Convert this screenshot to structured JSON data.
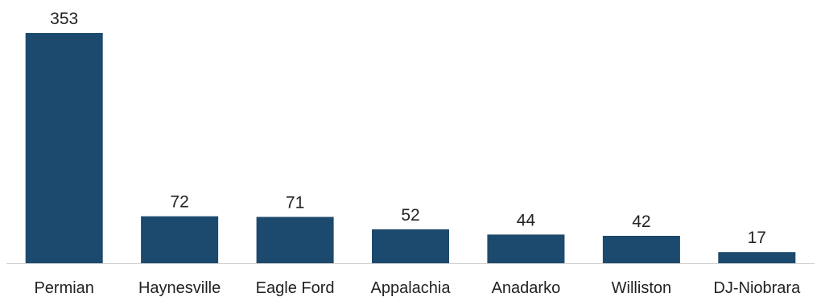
{
  "chart_data": {
    "type": "bar",
    "title": "",
    "xlabel": "",
    "ylabel": "",
    "categories": [
      "Permian",
      "Haynesville",
      "Eagle Ford",
      "Appalachia",
      "Anadarko",
      "Williston",
      "DJ-Niobrara"
    ],
    "values": [
      353,
      72,
      71,
      52,
      44,
      42,
      17
    ],
    "ylim": [
      0,
      353
    ],
    "grid": false,
    "legend": "none",
    "bar_color": "#1c4a6e",
    "axis_color": "#d0d0d0"
  }
}
